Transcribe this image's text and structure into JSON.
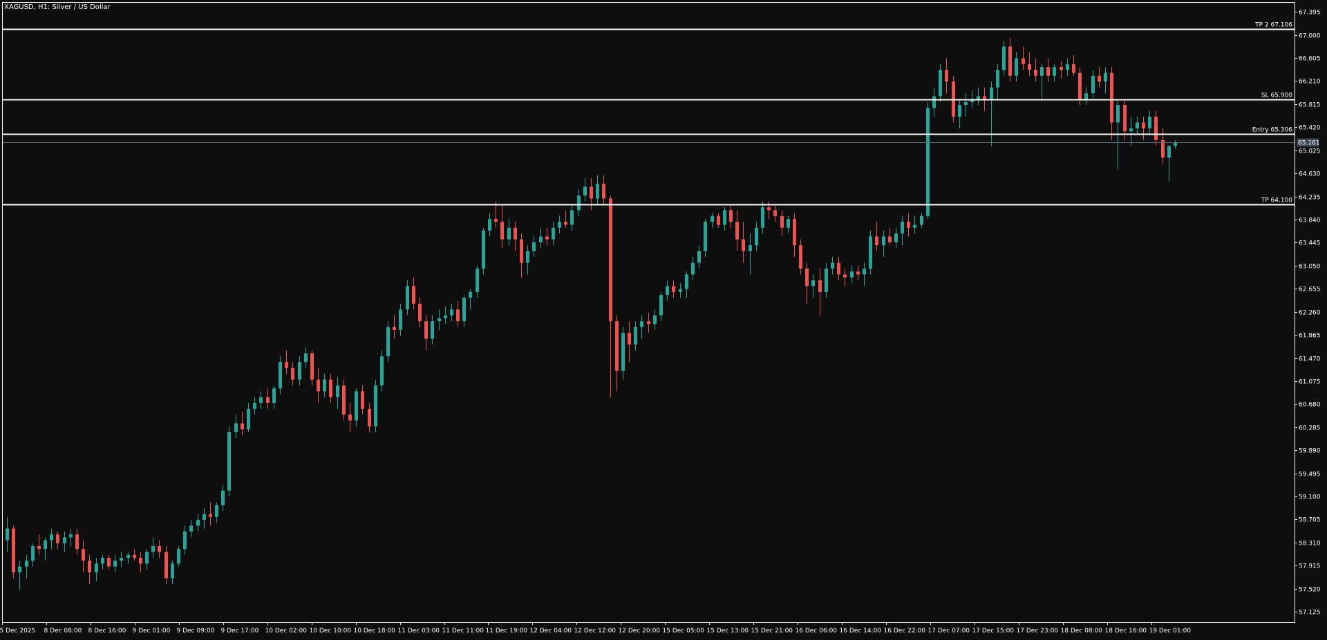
{
  "window": {
    "title": "XAGUSD, H1:  Silver / US Dollar"
  },
  "colors": {
    "background": "#0e0e0e",
    "bull": "#26a69a",
    "bear": "#ef5350",
    "level_line": "#ffffff",
    "price_line": "#5d6b7a",
    "price_label_bg": "#3b4650",
    "text": "#ffffff"
  },
  "chart_data": {
    "type": "candlestick",
    "symbol": "XAGUSD",
    "timeframe": "H1",
    "ylim": [
      56.95,
      67.55
    ],
    "yticks": [
      "67.395",
      "67.000",
      "66.605",
      "66.210",
      "65.815",
      "65.420",
      "65.025",
      "64.630",
      "64.235",
      "63.840",
      "63.445",
      "63.050",
      "62.655",
      "62.260",
      "61.865",
      "61.470",
      "61.075",
      "60.680",
      "60.285",
      "59.890",
      "59.495",
      "59.100",
      "58.705",
      "58.310",
      "57.915",
      "57.520",
      "57.125"
    ],
    "xticks": [
      "5 Dec 2025",
      "8 Dec 08:00",
      "8 Dec 16:00",
      "9 Dec 01:00",
      "9 Dec 09:00",
      "9 Dec 17:00",
      "10 Dec 02:00",
      "10 Dec 10:00",
      "10 Dec 18:00",
      "11 Dec 03:00",
      "11 Dec 11:00",
      "11 Dec 19:00",
      "12 Dec 04:00",
      "12 Dec 12:00",
      "12 Dec 20:00",
      "15 Dec 05:00",
      "15 Dec 13:00",
      "15 Dec 21:00",
      "16 Dec 06:00",
      "16 Dec 14:00",
      "16 Dec 22:00",
      "17 Dec 07:00",
      "17 Dec 15:00",
      "17 Dec 23:00",
      "18 Dec 08:00",
      "18 Dec 16:00",
      "19 Dec 01:00"
    ],
    "levels": [
      {
        "label": "TP 2 67.106",
        "value": 67.106
      },
      {
        "label": "SL 65.900",
        "value": 65.9
      },
      {
        "label": "Entry 65.306",
        "value": 65.306
      },
      {
        "label": "TP 64.100",
        "value": 64.1
      }
    ],
    "current_price": {
      "label": "65.161",
      "value": 65.161
    },
    "candles": [
      [
        58.35,
        58.75,
        58.15,
        58.55
      ],
      [
        58.55,
        58.6,
        57.7,
        57.8
      ],
      [
        57.8,
        58.0,
        57.5,
        57.9
      ],
      [
        57.9,
        58.1,
        57.7,
        58.0
      ],
      [
        58.0,
        58.3,
        57.9,
        58.25
      ],
      [
        58.25,
        58.45,
        58.1,
        58.2
      ],
      [
        58.2,
        58.4,
        58.0,
        58.35
      ],
      [
        58.35,
        58.55,
        58.2,
        58.45
      ],
      [
        58.45,
        58.5,
        58.2,
        58.3
      ],
      [
        58.3,
        58.5,
        58.15,
        58.4
      ],
      [
        58.4,
        58.55,
        58.25,
        58.45
      ],
      [
        58.45,
        58.55,
        58.1,
        58.2
      ],
      [
        58.2,
        58.35,
        57.8,
        58.0
      ],
      [
        58.0,
        58.1,
        57.6,
        57.8
      ],
      [
        57.8,
        58.05,
        57.65,
        57.95
      ],
      [
        57.95,
        58.1,
        57.85,
        58.05
      ],
      [
        58.05,
        58.1,
        57.85,
        57.9
      ],
      [
        57.9,
        58.1,
        57.8,
        58.0
      ],
      [
        58.0,
        58.15,
        57.9,
        58.05
      ],
      [
        58.05,
        58.15,
        57.95,
        58.1
      ],
      [
        58.1,
        58.2,
        58.0,
        58.05
      ],
      [
        58.05,
        58.15,
        57.8,
        57.95
      ],
      [
        57.95,
        58.2,
        57.85,
        58.15
      ],
      [
        58.15,
        58.4,
        58.05,
        58.25
      ],
      [
        58.25,
        58.35,
        58.05,
        58.15
      ],
      [
        58.15,
        58.25,
        57.6,
        57.7
      ],
      [
        57.7,
        58.0,
        57.6,
        57.95
      ],
      [
        57.95,
        58.25,
        57.9,
        58.2
      ],
      [
        58.2,
        58.6,
        58.1,
        58.5
      ],
      [
        58.5,
        58.7,
        58.4,
        58.6
      ],
      [
        58.6,
        58.8,
        58.5,
        58.7
      ],
      [
        58.7,
        58.9,
        58.55,
        58.8
      ],
      [
        58.8,
        59.0,
        58.6,
        58.75
      ],
      [
        58.75,
        59.0,
        58.65,
        58.95
      ],
      [
        58.95,
        59.3,
        58.85,
        59.2
      ],
      [
        59.2,
        60.3,
        59.1,
        60.2
      ],
      [
        60.2,
        60.5,
        60.1,
        60.35
      ],
      [
        60.35,
        60.55,
        60.15,
        60.25
      ],
      [
        60.25,
        60.7,
        60.2,
        60.6
      ],
      [
        60.6,
        60.8,
        60.5,
        60.7
      ],
      [
        60.7,
        60.9,
        60.6,
        60.8
      ],
      [
        60.8,
        60.95,
        60.6,
        60.7
      ],
      [
        60.7,
        61.0,
        60.6,
        60.95
      ],
      [
        60.95,
        61.5,
        60.85,
        61.4
      ],
      [
        61.4,
        61.6,
        61.2,
        61.3
      ],
      [
        61.3,
        61.4,
        61.0,
        61.1
      ],
      [
        61.1,
        61.5,
        61.0,
        61.4
      ],
      [
        61.4,
        61.65,
        61.3,
        61.55
      ],
      [
        61.55,
        61.6,
        61.0,
        61.1
      ],
      [
        61.1,
        61.3,
        60.7,
        60.9
      ],
      [
        60.9,
        61.2,
        60.8,
        61.1
      ],
      [
        61.1,
        61.2,
        60.7,
        60.8
      ],
      [
        60.8,
        61.15,
        60.6,
        61.0
      ],
      [
        61.0,
        61.1,
        60.4,
        60.5
      ],
      [
        60.5,
        60.7,
        60.2,
        60.4
      ],
      [
        60.4,
        60.95,
        60.3,
        60.9
      ],
      [
        60.9,
        61.0,
        60.5,
        60.6
      ],
      [
        60.6,
        60.7,
        60.2,
        60.3
      ],
      [
        60.3,
        61.1,
        60.2,
        61.0
      ],
      [
        61.0,
        61.6,
        60.9,
        61.5
      ],
      [
        61.5,
        62.1,
        61.4,
        62.0
      ],
      [
        62.0,
        62.2,
        61.8,
        61.95
      ],
      [
        61.95,
        62.4,
        61.85,
        62.3
      ],
      [
        62.3,
        62.8,
        62.2,
        62.7
      ],
      [
        62.7,
        62.85,
        62.3,
        62.4
      ],
      [
        62.4,
        62.5,
        62.0,
        62.1
      ],
      [
        62.1,
        62.2,
        61.6,
        61.8
      ],
      [
        61.8,
        62.2,
        61.7,
        62.1
      ],
      [
        62.1,
        62.3,
        61.95,
        62.15
      ],
      [
        62.15,
        62.35,
        62.05,
        62.2
      ],
      [
        62.2,
        62.4,
        62.1,
        62.3
      ],
      [
        62.3,
        62.45,
        62.0,
        62.1
      ],
      [
        62.1,
        62.55,
        62.0,
        62.5
      ],
      [
        62.5,
        62.65,
        62.3,
        62.6
      ],
      [
        62.6,
        63.05,
        62.5,
        63.0
      ],
      [
        63.0,
        63.7,
        62.9,
        63.65
      ],
      [
        63.65,
        63.95,
        63.55,
        63.85
      ],
      [
        63.85,
        64.15,
        63.7,
        63.8
      ],
      [
        63.8,
        64.1,
        63.35,
        63.5
      ],
      [
        63.5,
        63.85,
        63.4,
        63.7
      ],
      [
        63.7,
        63.8,
        63.3,
        63.5
      ],
      [
        63.5,
        63.6,
        62.85,
        63.1
      ],
      [
        63.1,
        63.4,
        62.9,
        63.3
      ],
      [
        63.3,
        63.55,
        63.2,
        63.45
      ],
      [
        63.45,
        63.7,
        63.35,
        63.55
      ],
      [
        63.55,
        63.7,
        63.4,
        63.5
      ],
      [
        63.5,
        63.8,
        63.4,
        63.7
      ],
      [
        63.7,
        63.9,
        63.6,
        63.8
      ],
      [
        63.8,
        64.0,
        63.7,
        63.75
      ],
      [
        63.75,
        64.1,
        63.65,
        64.0
      ],
      [
        64.0,
        64.35,
        63.9,
        64.25
      ],
      [
        64.25,
        64.55,
        64.15,
        64.4
      ],
      [
        64.4,
        64.55,
        64.0,
        64.2
      ],
      [
        64.2,
        64.6,
        64.1,
        64.45
      ],
      [
        64.45,
        64.6,
        64.1,
        64.2
      ],
      [
        64.2,
        64.25,
        60.8,
        62.1
      ],
      [
        62.1,
        62.2,
        60.9,
        61.25
      ],
      [
        61.25,
        62.0,
        61.1,
        61.9
      ],
      [
        61.9,
        62.1,
        61.4,
        61.7
      ],
      [
        61.7,
        62.1,
        61.6,
        62.0
      ],
      [
        62.0,
        62.2,
        61.8,
        62.1
      ],
      [
        62.1,
        62.25,
        61.9,
        62.05
      ],
      [
        62.05,
        62.3,
        61.95,
        62.2
      ],
      [
        62.2,
        62.6,
        62.1,
        62.55
      ],
      [
        62.55,
        62.8,
        62.45,
        62.7
      ],
      [
        62.7,
        62.8,
        62.5,
        62.6
      ],
      [
        62.6,
        62.75,
        62.5,
        62.65
      ],
      [
        62.65,
        62.95,
        62.5,
        62.9
      ],
      [
        62.9,
        63.2,
        62.8,
        63.1
      ],
      [
        63.1,
        63.4,
        63.0,
        63.3
      ],
      [
        63.3,
        63.85,
        63.2,
        63.8
      ],
      [
        63.8,
        63.95,
        63.7,
        63.9
      ],
      [
        63.9,
        63.95,
        63.7,
        63.75
      ],
      [
        63.75,
        64.05,
        63.65,
        64.0
      ],
      [
        64.0,
        64.1,
        63.7,
        63.8
      ],
      [
        63.8,
        64.0,
        63.3,
        63.5
      ],
      [
        63.5,
        63.8,
        63.1,
        63.3
      ],
      [
        63.3,
        63.6,
        62.9,
        63.4
      ],
      [
        63.4,
        63.8,
        63.3,
        63.7
      ],
      [
        63.7,
        64.15,
        63.6,
        64.05
      ],
      [
        64.05,
        64.15,
        63.85,
        64.0
      ],
      [
        64.0,
        64.1,
        63.8,
        63.9
      ],
      [
        63.9,
        64.0,
        63.55,
        63.7
      ],
      [
        63.7,
        63.9,
        63.6,
        63.85
      ],
      [
        63.85,
        63.95,
        63.2,
        63.4
      ],
      [
        63.4,
        63.5,
        62.9,
        63.0
      ],
      [
        63.0,
        63.1,
        62.4,
        62.7
      ],
      [
        62.7,
        62.9,
        62.5,
        62.8
      ],
      [
        62.8,
        63.0,
        62.2,
        62.6
      ],
      [
        62.6,
        63.1,
        62.5,
        63.0
      ],
      [
        63.0,
        63.2,
        62.9,
        63.1
      ],
      [
        63.1,
        63.2,
        62.8,
        62.9
      ],
      [
        62.9,
        63.0,
        62.7,
        62.85
      ],
      [
        62.85,
        63.05,
        62.75,
        62.95
      ],
      [
        62.95,
        63.05,
        62.8,
        62.9
      ],
      [
        62.9,
        63.1,
        62.7,
        63.0
      ],
      [
        63.0,
        63.65,
        62.9,
        63.55
      ],
      [
        63.55,
        63.8,
        63.3,
        63.4
      ],
      [
        63.4,
        63.65,
        63.2,
        63.55
      ],
      [
        63.55,
        63.7,
        63.4,
        63.45
      ],
      [
        63.45,
        63.7,
        63.35,
        63.6
      ],
      [
        63.6,
        63.9,
        63.4,
        63.8
      ],
      [
        63.8,
        63.95,
        63.55,
        63.7
      ],
      [
        63.7,
        63.9,
        63.6,
        63.75
      ],
      [
        63.75,
        63.95,
        63.7,
        63.9
      ],
      [
        63.9,
        65.85,
        63.85,
        65.75
      ],
      [
        65.75,
        66.1,
        65.6,
        65.95
      ],
      [
        65.95,
        66.5,
        65.85,
        66.4
      ],
      [
        66.4,
        66.6,
        66.0,
        66.2
      ],
      [
        66.2,
        66.3,
        65.5,
        65.6
      ],
      [
        65.6,
        65.9,
        65.4,
        65.8
      ],
      [
        65.8,
        66.0,
        65.6,
        65.85
      ],
      [
        65.85,
        66.05,
        65.75,
        65.9
      ],
      [
        65.9,
        66.1,
        65.8,
        65.95
      ],
      [
        65.95,
        66.1,
        65.7,
        65.9
      ],
      [
        65.9,
        66.2,
        65.1,
        66.1
      ],
      [
        66.1,
        66.5,
        65.9,
        66.4
      ],
      [
        66.4,
        66.9,
        66.3,
        66.8
      ],
      [
        66.8,
        66.95,
        66.2,
        66.3
      ],
      [
        66.3,
        66.7,
        66.2,
        66.6
      ],
      [
        66.6,
        66.8,
        66.4,
        66.5
      ],
      [
        66.5,
        66.7,
        66.3,
        66.4
      ],
      [
        66.4,
        66.6,
        66.2,
        66.3
      ],
      [
        66.3,
        66.5,
        65.9,
        66.45
      ],
      [
        66.45,
        66.6,
        66.2,
        66.3
      ],
      [
        66.3,
        66.5,
        66.2,
        66.45
      ],
      [
        66.45,
        66.55,
        66.25,
        66.4
      ],
      [
        66.4,
        66.6,
        66.3,
        66.5
      ],
      [
        66.5,
        66.65,
        66.3,
        66.35
      ],
      [
        66.35,
        66.45,
        65.8,
        65.9
      ],
      [
        65.9,
        66.1,
        65.8,
        66.0
      ],
      [
        66.0,
        66.4,
        65.9,
        66.3
      ],
      [
        66.3,
        66.45,
        66.1,
        66.2
      ],
      [
        66.2,
        66.45,
        66.0,
        66.35
      ],
      [
        66.35,
        66.45,
        65.2,
        65.5
      ],
      [
        65.5,
        65.9,
        64.7,
        65.8
      ],
      [
        65.8,
        65.9,
        65.2,
        65.35
      ],
      [
        65.35,
        65.6,
        65.1,
        65.4
      ],
      [
        65.4,
        65.6,
        65.3,
        65.5
      ],
      [
        65.5,
        65.6,
        65.2,
        65.4
      ],
      [
        65.4,
        65.7,
        65.3,
        65.6
      ],
      [
        65.6,
        65.7,
        65.1,
        65.2
      ],
      [
        65.2,
        65.4,
        64.8,
        64.9
      ],
      [
        64.9,
        65.1,
        64.5,
        65.1
      ],
      [
        65.1,
        65.2,
        65.05,
        65.16
      ]
    ]
  }
}
